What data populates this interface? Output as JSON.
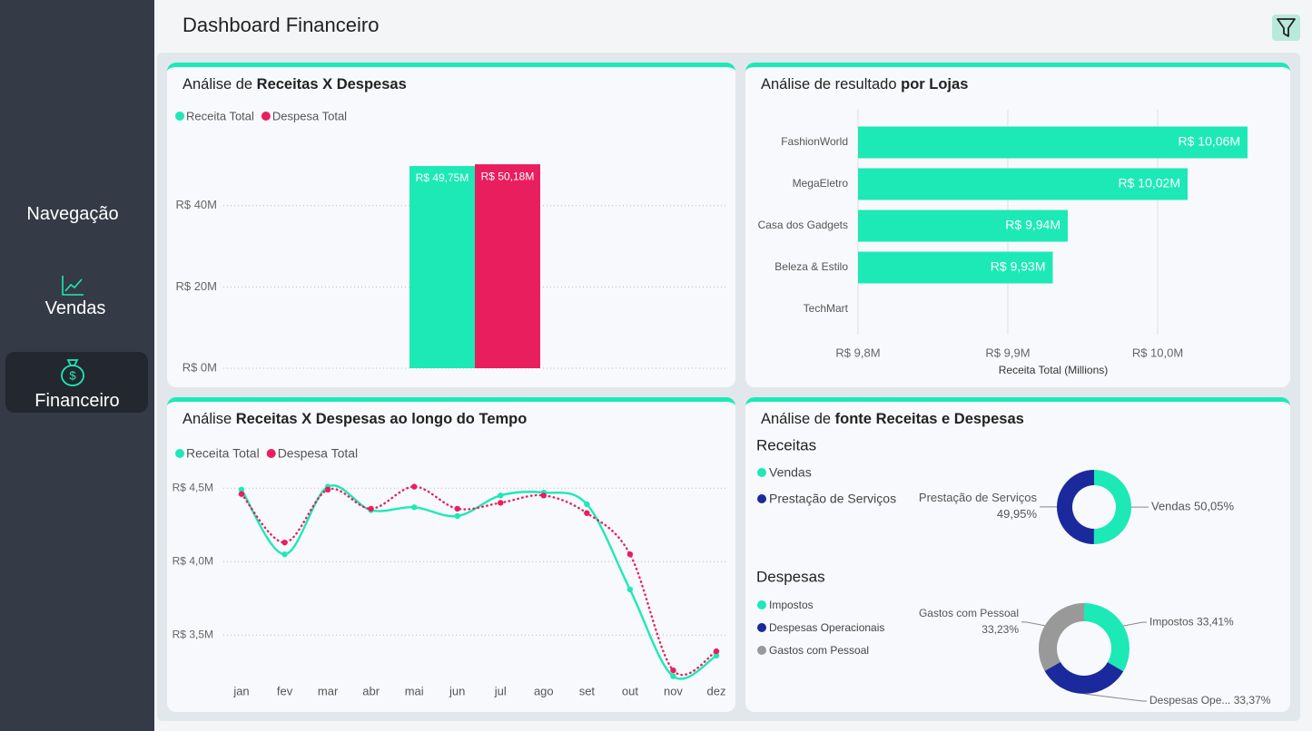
{
  "header": {
    "title": "Dashboard Financeiro"
  },
  "nav": {
    "title": "Navegação",
    "items": [
      "Vendas",
      "Financeiro"
    ]
  },
  "chart_data": [
    {
      "type": "bar",
      "title": "Análise de",
      "title_emphasis": "Receitas X Despesas",
      "categories": [
        null
      ],
      "series": [
        {
          "name": "Receita Total",
          "color": "#1de9b6",
          "values": [
            49.75
          ],
          "value_labels": [
            "R$ 49,75M"
          ]
        },
        {
          "name": "Despesa Total",
          "color": "#e91e5f",
          "values": [
            50.18
          ],
          "value_labels": [
            "R$ 50,18M"
          ]
        }
      ],
      "ylim": [
        0,
        54
      ],
      "yticks": [
        {
          "value": 0,
          "label": "R$ 0M"
        },
        {
          "value": 20,
          "label": "R$ 20M"
        },
        {
          "value": 40,
          "label": "R$ 40M"
        }
      ],
      "grid": true,
      "legend": "top-left"
    },
    {
      "type": "bar",
      "orientation": "horizontal",
      "title": "Análise de resultado",
      "title_emphasis": "por Lojas",
      "categories": [
        "FashionWorld",
        "MegaEletro",
        "Casa dos Gadgets",
        "Beleza & Estilo",
        "TechMart"
      ],
      "values": [
        10.06,
        10.02,
        9.94,
        9.93,
        null
      ],
      "value_labels": [
        "R$ 10,06M",
        "R$ 10,02M",
        "R$ 9,94M",
        "R$ 9,93M",
        null
      ],
      "color": "#1de9b6",
      "xlabel": "Receita Total (Millions)",
      "xlim": [
        9.8,
        10.08
      ],
      "xticks": [
        {
          "value": 9.8,
          "label": "R$ 9,8M"
        },
        {
          "value": 9.9,
          "label": "R$ 9,9M"
        },
        {
          "value": 10.0,
          "label": "R$ 10,0M"
        }
      ],
      "grid": true
    },
    {
      "type": "line",
      "title": "Análise",
      "title_emphasis": "Receitas X Despesas ao longo do Tempo",
      "categories": [
        "jan",
        "fev",
        "mar",
        "abr",
        "mai",
        "jun",
        "jul",
        "ago",
        "set",
        "out",
        "nov",
        "dez"
      ],
      "series": [
        {
          "name": "Receita Total",
          "color": "#1de9b6",
          "values": [
            4.49,
            4.05,
            4.51,
            4.35,
            4.37,
            4.31,
            4.45,
            4.47,
            4.39,
            3.81,
            3.22,
            3.36
          ]
        },
        {
          "name": "Despesa Total",
          "color": "#e91e5f",
          "dotted": true,
          "values": [
            4.46,
            4.13,
            4.49,
            4.36,
            4.51,
            4.36,
            4.4,
            4.45,
            4.33,
            4.05,
            3.26,
            3.39
          ]
        }
      ],
      "ylim": [
        3.15,
        4.6
      ],
      "yticks": [
        {
          "value": 3.5,
          "label": "R$ 3,5M"
        },
        {
          "value": 4.0,
          "label": "R$ 4,0M"
        },
        {
          "value": 4.5,
          "label": "R$ 4,5M"
        }
      ],
      "grid": true,
      "legend": "top-left"
    },
    {
      "type": "donut",
      "title": "Análise de",
      "title_emphasis": "fonte Receitas e Despesas",
      "subtitle": "Receitas",
      "categories": [
        "Vendas",
        "Prestação de Serviços"
      ],
      "values": [
        50.05,
        49.95
      ],
      "value_labels": [
        "Vendas 50,05%",
        "Prestação de Serviços 49,95%"
      ],
      "colors": [
        "#1de9b6",
        "#1a2a9c"
      ]
    },
    {
      "type": "donut",
      "subtitle": "Despesas",
      "categories": [
        "Impostos",
        "Despesas Operacionais",
        "Gastos com Pessoal"
      ],
      "values": [
        33.41,
        33.37,
        33.23
      ],
      "value_labels": [
        "Impostos 33,41%",
        "Despesas Ope... 33,37%",
        "Gastos com Pessoal 33,23%"
      ],
      "colors": [
        "#1de9b6",
        "#1a2a9c",
        "#999999"
      ]
    }
  ]
}
